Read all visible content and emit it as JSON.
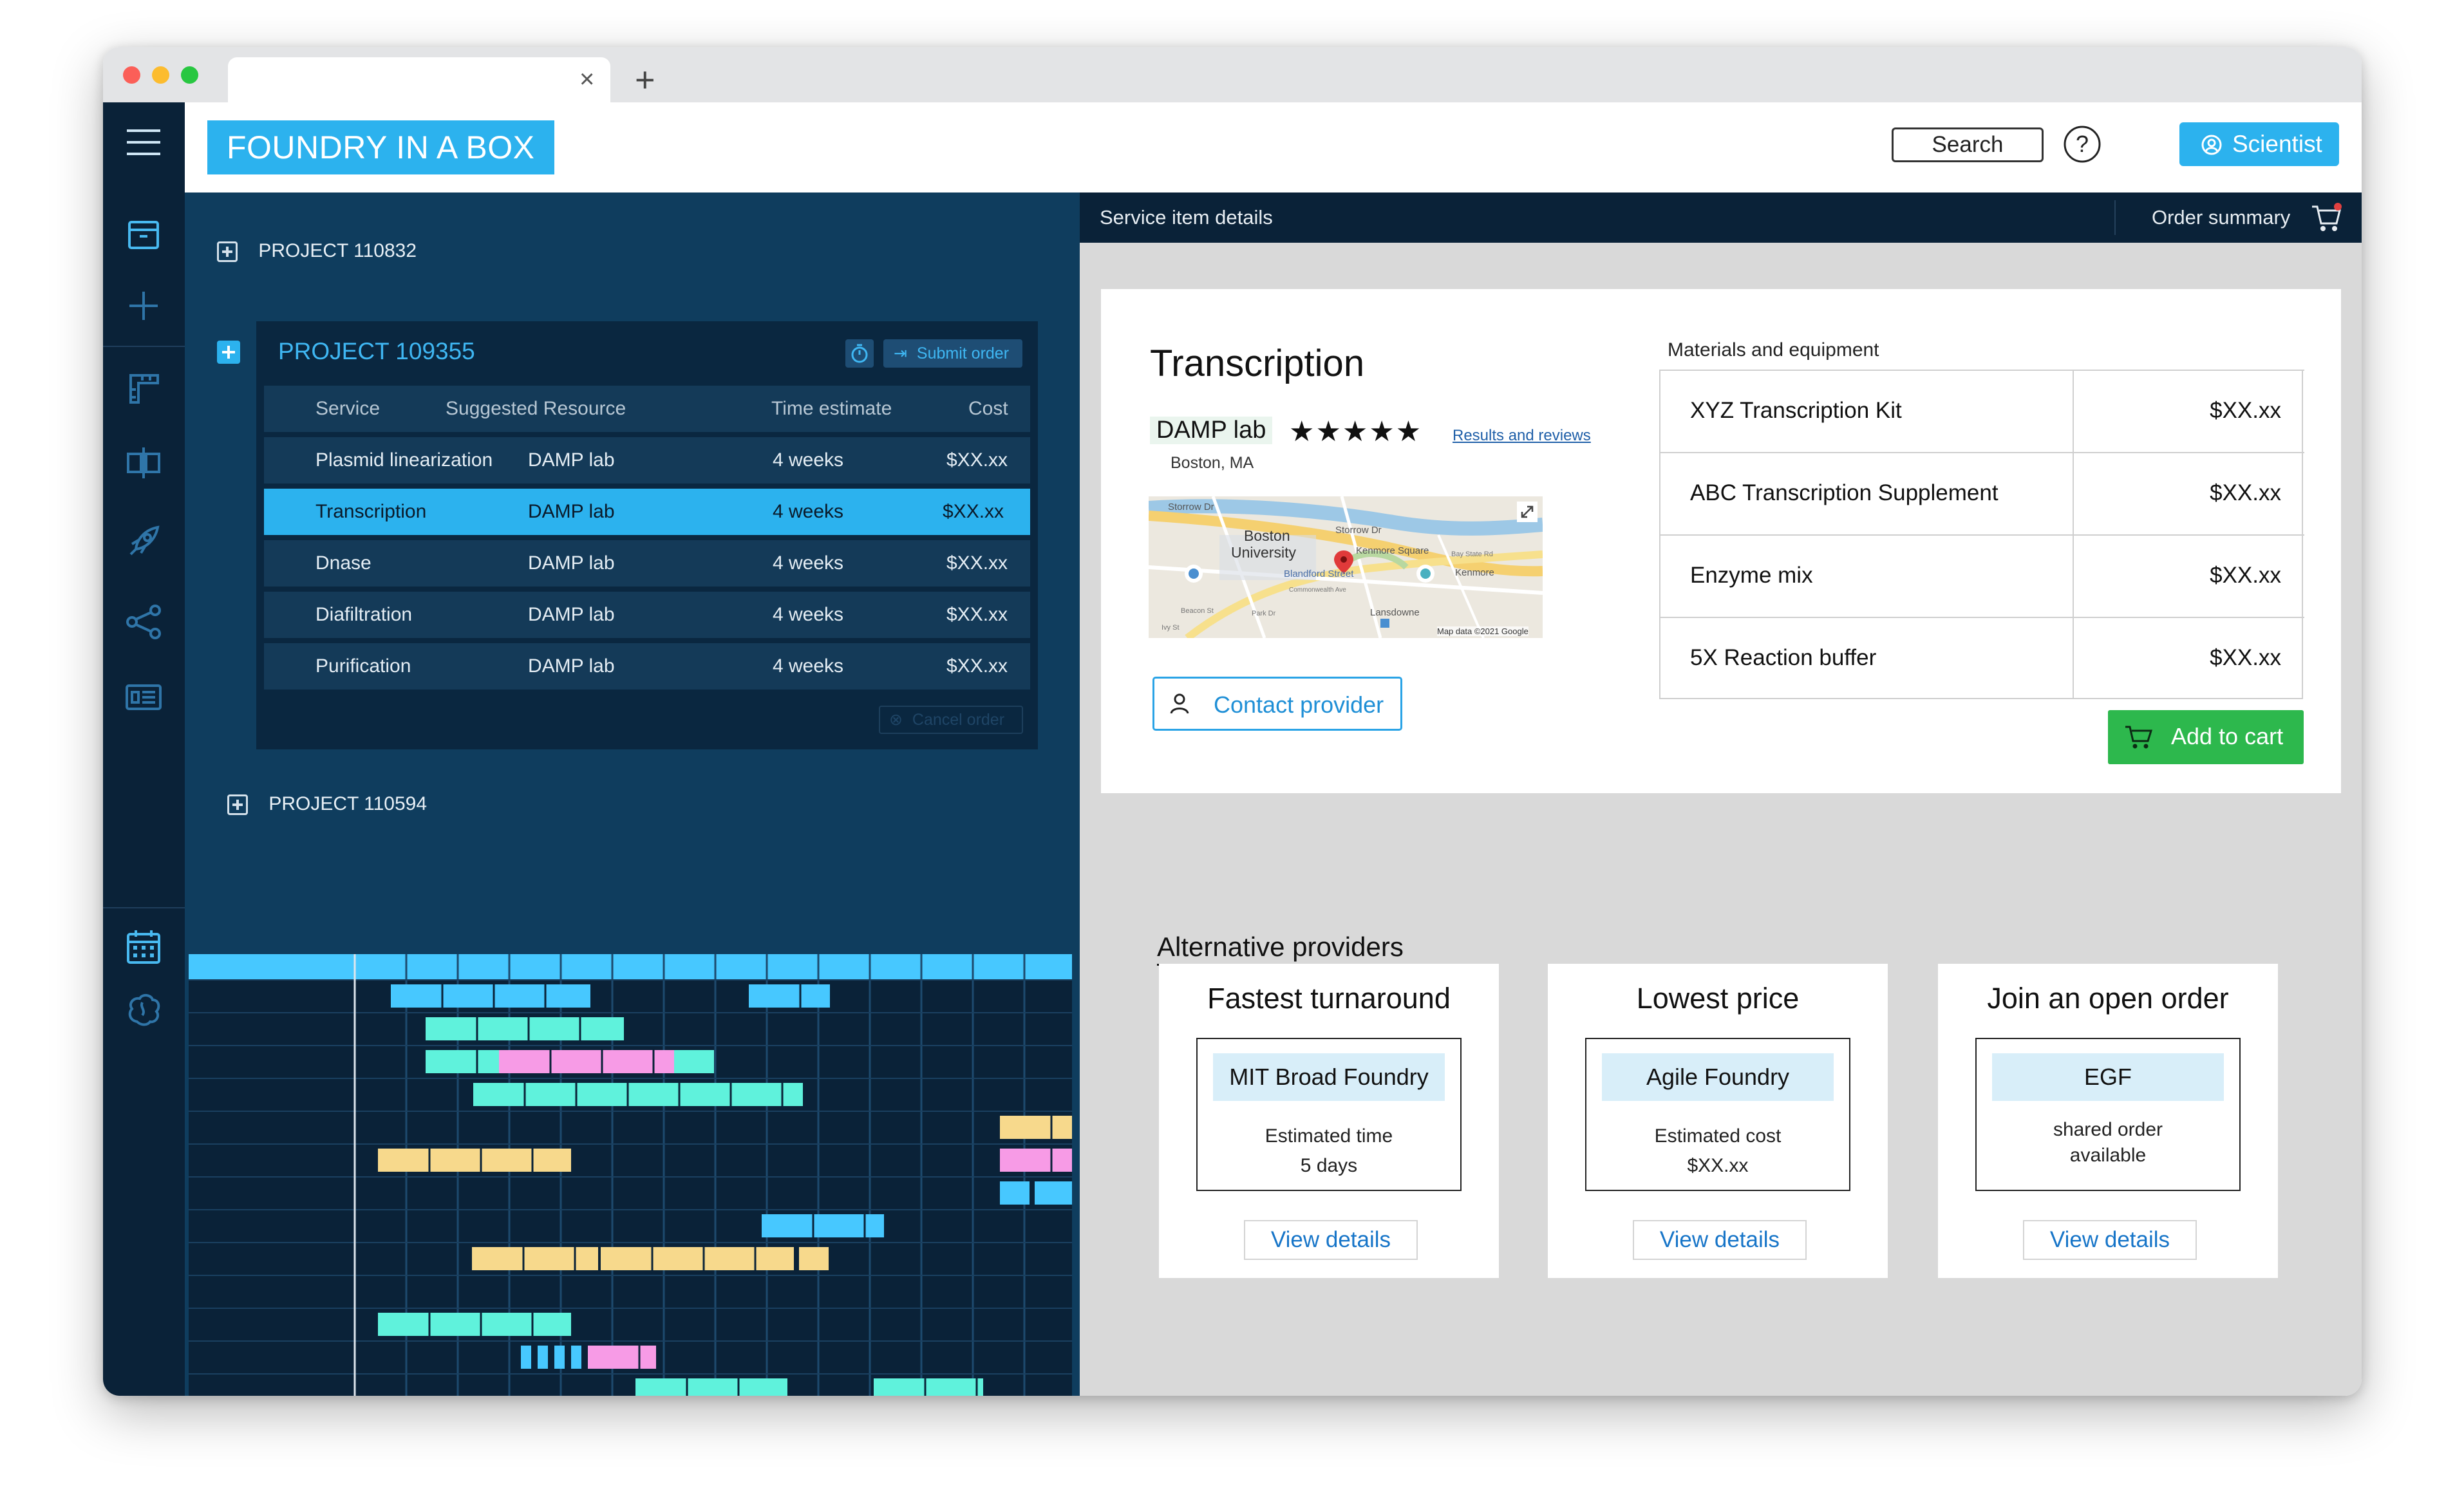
{
  "browser": {
    "tab_close": "×",
    "new_tab": "+"
  },
  "header": {
    "brand": "FOUNDRY IN A BOX",
    "search_label": "Search",
    "user_label": "Scientist"
  },
  "projects": {
    "top": "PROJECT 110832",
    "active": "PROJECT 109355",
    "bottom": "PROJECT 110594",
    "submit_label": "Submit order",
    "cancel_label": "Cancel order"
  },
  "table": {
    "headers": [
      "Service",
      "Suggested Resource",
      "Time estimate",
      "Cost"
    ],
    "rows": [
      [
        "Plasmid linearization",
        "DAMP lab",
        "4 weeks",
        "$XX.xx"
      ],
      [
        "Transcription",
        "DAMP lab",
        "4 weeks",
        "$XX.xx"
      ],
      [
        "Dnase",
        "DAMP lab",
        "4 weeks",
        "$XX.xx"
      ],
      [
        "Diafiltration",
        "DAMP lab",
        "4 weeks",
        "$XX.xx"
      ],
      [
        "Purification",
        "DAMP lab",
        "4 weeks",
        "$XX.xx"
      ]
    ],
    "selected_row": 1
  },
  "details": {
    "bar_title": "Service item details",
    "order_summary": "Order summary",
    "service_title": "Transcription",
    "provider": "DAMP lab",
    "rating": 5,
    "rating_stars": "★★★★★",
    "reviews_link": "Results and reviews",
    "location": "Boston, MA",
    "contact_label": "Contact provider",
    "materials_label": "Materials and equipment",
    "materials": [
      {
        "name": "XYZ Transcription Kit",
        "price": "$XX.xx"
      },
      {
        "name": "ABC Transcription Supplement",
        "price": "$XX.xx"
      },
      {
        "name": "Enzyme mix",
        "price": "$XX.xx"
      },
      {
        "name": "5X Reaction buffer",
        "price": "$XX.xx"
      }
    ],
    "add_to_cart": "Add to cart"
  },
  "map": {
    "labels": [
      "Storrow Dr",
      "Storrow Dr",
      "Boston",
      "University",
      "Kenmore Square",
      "Bay State Rd",
      "Blandford Street",
      "Kenmore",
      "Commonwealth Ave",
      "Lansdowne",
      "Beacon St",
      "Park Dr",
      "Ivy St",
      "Map data ©2021 Google"
    ]
  },
  "alternatives": {
    "heading": "Alternative providers",
    "cards": [
      {
        "title": "Fastest turnaround",
        "name": "MIT Broad Foundry",
        "line1": "Estimated time",
        "line2": "5 days",
        "view": "View details"
      },
      {
        "title": "Lowest price",
        "name": "Agile Foundry",
        "line1": "Estimated cost",
        "line2": "$XX.xx",
        "view": "View details"
      },
      {
        "title": "Join an open order",
        "name": "EGF",
        "line1": "shared order",
        "line2": "available",
        "view": "View details"
      }
    ]
  },
  "colors": {
    "accent": "#2cb2ee",
    "sidebar": "#0a2238",
    "panel": "#0f3d5e",
    "cart_green": "#2db84d",
    "gantt_cyan": "#5ff2dc",
    "gantt_blue": "#47c8ff",
    "gantt_pink": "#f79be6",
    "gantt_yellow": "#f7d98c"
  }
}
